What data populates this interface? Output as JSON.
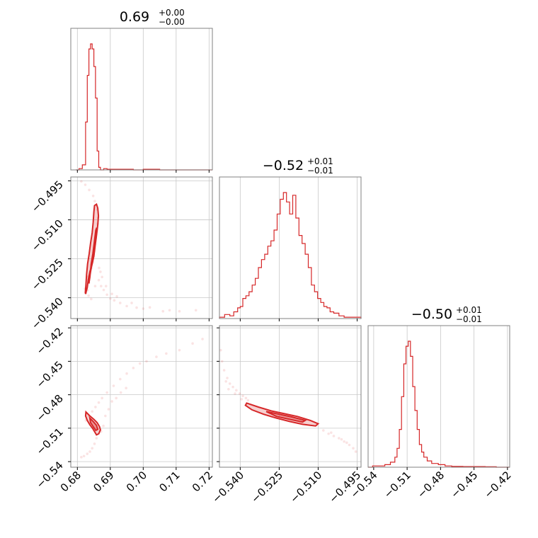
{
  "chart_data": {
    "type": "corner",
    "parameters": [
      {
        "range": [
          0.678,
          0.721
        ],
        "ticks": [
          0.68,
          0.69,
          0.7,
          0.71,
          0.72
        ],
        "tick_labels": [
          "0.68",
          "0.69",
          "0.70",
          "0.71",
          "0.72"
        ],
        "title": {
          "value": "0.69",
          "plus": "+0.00",
          "minus": "−0.00"
        }
      },
      {
        "range": [
          -0.548,
          -0.4935
        ],
        "ticks": [
          -0.54,
          -0.525,
          -0.51,
          -0.495
        ],
        "tick_labels": [
          "−0.540",
          "−0.525",
          "−0.510",
          "−0.495"
        ],
        "title": {
          "value": "−0.52",
          "plus": "+0.01",
          "minus": "−0.01"
        }
      },
      {
        "range": [
          -0.545,
          -0.418
        ],
        "ticks": [
          -0.54,
          -0.51,
          -0.48,
          -0.45,
          -0.42
        ],
        "tick_labels": [
          "−0.54",
          "−0.51",
          "−0.48",
          "−0.45",
          "−0.42"
        ],
        "title": {
          "value": "−0.50",
          "plus": "+0.01",
          "minus": "−0.01"
        }
      }
    ],
    "histograms": [
      {
        "param": 0,
        "bins": [
          [
            0.6795,
            0
          ],
          [
            0.6805,
            1
          ],
          [
            0.6815,
            4
          ],
          [
            0.6825,
            38
          ],
          [
            0.683,
            75
          ],
          [
            0.6835,
            96
          ],
          [
            0.684,
            100
          ],
          [
            0.6845,
            96
          ],
          [
            0.685,
            82
          ],
          [
            0.6855,
            57
          ],
          [
            0.686,
            15
          ],
          [
            0.6865,
            2
          ],
          [
            0.687,
            0
          ],
          [
            0.688,
            1
          ],
          [
            0.689,
            0.5
          ],
          [
            0.69,
            0.5
          ],
          [
            0.693,
            0.5
          ],
          [
            0.695,
            0.5
          ],
          [
            0.697,
            0
          ],
          [
            0.7,
            0.5
          ],
          [
            0.701,
            0.5
          ],
          [
            0.702,
            0.5
          ],
          [
            0.705,
            0
          ],
          [
            0.721,
            0
          ]
        ]
      },
      {
        "param": 1,
        "bins": [
          [
            -0.548,
            1
          ],
          [
            -0.546,
            3
          ],
          [
            -0.544,
            2
          ],
          [
            -0.5425,
            5
          ],
          [
            -0.541,
            8
          ],
          [
            -0.54,
            9
          ],
          [
            -0.539,
            15
          ],
          [
            -0.5378,
            17
          ],
          [
            -0.5366,
            20
          ],
          [
            -0.5354,
            25
          ],
          [
            -0.5342,
            30
          ],
          [
            -0.533,
            38
          ],
          [
            -0.5318,
            44
          ],
          [
            -0.5306,
            48
          ],
          [
            -0.5294,
            54
          ],
          [
            -0.5282,
            58
          ],
          [
            -0.527,
            66
          ],
          [
            -0.5258,
            78
          ],
          [
            -0.5246,
            89
          ],
          [
            -0.5234,
            94
          ],
          [
            -0.5222,
            87
          ],
          [
            -0.521,
            78
          ],
          [
            -0.5198,
            92
          ],
          [
            -0.5186,
            75
          ],
          [
            -0.5174,
            62
          ],
          [
            -0.5162,
            56
          ],
          [
            -0.515,
            48
          ],
          [
            -0.5138,
            38
          ],
          [
            -0.5126,
            25
          ],
          [
            -0.5114,
            20
          ],
          [
            -0.5102,
            15
          ],
          [
            -0.509,
            12
          ],
          [
            -0.5078,
            9
          ],
          [
            -0.5066,
            8
          ],
          [
            -0.5054,
            5
          ],
          [
            -0.504,
            4
          ],
          [
            -0.502,
            2
          ],
          [
            -0.5,
            1
          ],
          [
            -0.498,
            1
          ],
          [
            -0.4935,
            0
          ]
        ]
      },
      {
        "param": 2,
        "bins": [
          [
            -0.545,
            0
          ],
          [
            -0.541,
            1
          ],
          [
            -0.535,
            1
          ],
          [
            -0.53,
            2
          ],
          [
            -0.525,
            4
          ],
          [
            -0.521,
            8
          ],
          [
            -0.519,
            15
          ],
          [
            -0.517,
            30
          ],
          [
            -0.515,
            56
          ],
          [
            -0.513,
            82
          ],
          [
            -0.511,
            96
          ],
          [
            -0.509,
            100
          ],
          [
            -0.507,
            88
          ],
          [
            -0.505,
            64
          ],
          [
            -0.503,
            45
          ],
          [
            -0.501,
            30
          ],
          [
            -0.499,
            18
          ],
          [
            -0.497,
            12
          ],
          [
            -0.495,
            8
          ],
          [
            -0.492,
            5
          ],
          [
            -0.488,
            3
          ],
          [
            -0.482,
            2
          ],
          [
            -0.476,
            1
          ],
          [
            -0.47,
            0.6
          ],
          [
            -0.46,
            0.5
          ],
          [
            -0.45,
            0.5
          ],
          [
            -0.44,
            0.4
          ],
          [
            -0.43,
            0
          ],
          [
            -0.418,
            0
          ]
        ]
      }
    ],
    "scatters": [
      {
        "x_param": 0,
        "y_param": 1,
        "points": [
          [
            0.6826,
            -0.5382
          ],
          [
            0.6831,
            -0.5371
          ],
          [
            0.6828,
            -0.5355
          ],
          [
            0.6835,
            -0.5342
          ],
          [
            0.6833,
            -0.5318
          ],
          [
            0.6839,
            -0.53
          ],
          [
            0.6842,
            -0.5286
          ],
          [
            0.6846,
            -0.5262
          ],
          [
            0.6848,
            -0.524
          ],
          [
            0.6851,
            -0.522
          ],
          [
            0.6853,
            -0.5195
          ],
          [
            0.6856,
            -0.517
          ],
          [
            0.6859,
            -0.514
          ],
          [
            0.6862,
            -0.5115
          ],
          [
            0.6863,
            -0.5092
          ],
          [
            0.686,
            -0.506
          ],
          [
            0.6853,
            -0.5028
          ],
          [
            0.6848,
            -0.5008
          ],
          [
            0.6836,
            -0.4985
          ],
          [
            0.6824,
            -0.4965
          ],
          [
            0.6812,
            -0.4952
          ],
          [
            0.6865,
            -0.5332
          ],
          [
            0.6872,
            -0.5355
          ],
          [
            0.688,
            -0.537
          ],
          [
            0.689,
            -0.5388
          ],
          [
            0.69,
            -0.5403
          ],
          [
            0.6912,
            -0.541
          ],
          [
            0.693,
            -0.542
          ],
          [
            0.695,
            -0.5432
          ],
          [
            0.6965,
            -0.542
          ],
          [
            0.698,
            -0.5438
          ],
          [
            0.7,
            -0.5442
          ],
          [
            0.702,
            -0.5437
          ],
          [
            0.706,
            -0.5452
          ],
          [
            0.708,
            -0.5448
          ],
          [
            0.711,
            -0.5452
          ],
          [
            0.716,
            -0.5448
          ],
          [
            0.687,
            -0.53
          ],
          [
            0.6875,
            -0.532
          ],
          [
            0.6887,
            -0.5355
          ],
          [
            0.6905,
            -0.5385
          ],
          [
            0.692,
            -0.5395
          ],
          [
            0.6823,
            -0.5365
          ],
          [
            0.6834,
            -0.5392
          ],
          [
            0.6842,
            -0.5405
          ],
          [
            0.6854,
            -0.5355
          ],
          [
            0.6866,
            -0.5285
          ]
        ]
      },
      {
        "x_param": 0,
        "y_param": 2,
        "points": [
          [
            0.6826,
            -0.503
          ],
          [
            0.6835,
            -0.499
          ],
          [
            0.6845,
            -0.495
          ],
          [
            0.6855,
            -0.491
          ],
          [
            0.6865,
            -0.487
          ],
          [
            0.6875,
            -0.483
          ],
          [
            0.689,
            -0.478
          ],
          [
            0.691,
            -0.472
          ],
          [
            0.693,
            -0.466
          ],
          [
            0.695,
            -0.461
          ],
          [
            0.697,
            -0.456
          ],
          [
            0.699,
            -0.452
          ],
          [
            0.701,
            -0.45
          ],
          [
            0.704,
            -0.446
          ],
          [
            0.707,
            -0.443
          ],
          [
            0.711,
            -0.44
          ],
          [
            0.715,
            -0.434
          ],
          [
            0.718,
            -0.43
          ],
          [
            0.6858,
            -0.519
          ],
          [
            0.6852,
            -0.524
          ],
          [
            0.6845,
            -0.528
          ],
          [
            0.6838,
            -0.531
          ],
          [
            0.683,
            -0.533
          ],
          [
            0.682,
            -0.535
          ],
          [
            0.6812,
            -0.536
          ],
          [
            0.6872,
            -0.513
          ],
          [
            0.6879,
            -0.508
          ],
          [
            0.6885,
            -0.499
          ],
          [
            0.6895,
            -0.493
          ],
          [
            0.6905,
            -0.486
          ],
          [
            0.6918,
            -0.483
          ],
          [
            0.6932,
            -0.478
          ],
          [
            0.6948,
            -0.474
          ]
        ]
      },
      {
        "x_param": 1,
        "y_param": 2,
        "points": [
          [
            -0.5475,
            -0.44
          ],
          [
            -0.547,
            -0.45
          ],
          [
            -0.5462,
            -0.458
          ],
          [
            -0.545,
            -0.465
          ],
          [
            -0.544,
            -0.47
          ],
          [
            -0.5428,
            -0.473
          ],
          [
            -0.5415,
            -0.476
          ],
          [
            -0.5402,
            -0.479
          ],
          [
            -0.539,
            -0.481
          ],
          [
            -0.5378,
            -0.483
          ],
          [
            -0.537,
            -0.485
          ],
          [
            -0.5455,
            -0.468
          ],
          [
            -0.5445,
            -0.475
          ],
          [
            -0.542,
            -0.479
          ],
          [
            -0.5395,
            -0.484
          ],
          [
            -0.508,
            -0.512
          ],
          [
            -0.506,
            -0.515
          ],
          [
            -0.504,
            -0.517
          ],
          [
            -0.502,
            -0.519
          ],
          [
            -0.5,
            -0.522
          ],
          [
            -0.498,
            -0.525
          ],
          [
            -0.4965,
            -0.528
          ],
          [
            -0.4955,
            -0.531
          ],
          [
            -0.505,
            -0.514
          ],
          [
            -0.501,
            -0.52
          ],
          [
            -0.499,
            -0.523
          ]
        ]
      }
    ],
    "contours": [
      {
        "x_param": 0,
        "y_param": 1,
        "outer": [
          [
            0.6825,
            -0.5385
          ],
          [
            0.683,
            -0.536
          ],
          [
            0.6833,
            -0.533
          ],
          [
            0.6838,
            -0.53
          ],
          [
            0.6845,
            -0.527
          ],
          [
            0.685,
            -0.524
          ],
          [
            0.6854,
            -0.52
          ],
          [
            0.6858,
            -0.516
          ],
          [
            0.6862,
            -0.512
          ],
          [
            0.6864,
            -0.5085
          ],
          [
            0.6862,
            -0.5055
          ],
          [
            0.6858,
            -0.504
          ],
          [
            0.6852,
            -0.5045
          ],
          [
            0.685,
            -0.507
          ],
          [
            0.6848,
            -0.511
          ],
          [
            0.6845,
            -0.515
          ],
          [
            0.684,
            -0.519
          ],
          [
            0.6836,
            -0.523
          ],
          [
            0.6831,
            -0.527
          ],
          [
            0.6828,
            -0.531
          ],
          [
            0.6826,
            -0.535
          ],
          [
            0.6824,
            -0.538
          ]
        ],
        "inner": [
          [
            0.6835,
            -0.5345
          ],
          [
            0.684,
            -0.53
          ],
          [
            0.6846,
            -0.526
          ],
          [
            0.6852,
            -0.521
          ],
          [
            0.6856,
            -0.516
          ],
          [
            0.6859,
            -0.513
          ],
          [
            0.6856,
            -0.514
          ],
          [
            0.6852,
            -0.518
          ],
          [
            0.6847,
            -0.523
          ],
          [
            0.6842,
            -0.527
          ],
          [
            0.6838,
            -0.532
          ]
        ]
      },
      {
        "x_param": 0,
        "y_param": 2,
        "outer": [
          [
            0.6826,
            -0.4955
          ],
          [
            0.6838,
            -0.499
          ],
          [
            0.685,
            -0.502
          ],
          [
            0.686,
            -0.505
          ],
          [
            0.6867,
            -0.5085
          ],
          [
            0.687,
            -0.5115
          ],
          [
            0.6865,
            -0.515
          ],
          [
            0.6858,
            -0.516
          ],
          [
            0.6852,
            -0.513
          ],
          [
            0.6846,
            -0.51
          ],
          [
            0.6838,
            -0.507
          ],
          [
            0.683,
            -0.503
          ],
          [
            0.6825,
            -0.499
          ]
        ],
        "inner": [
          [
            0.6838,
            -0.501
          ],
          [
            0.6848,
            -0.504
          ],
          [
            0.6858,
            -0.5075
          ],
          [
            0.6862,
            -0.511
          ],
          [
            0.6856,
            -0.512
          ],
          [
            0.6848,
            -0.5085
          ],
          [
            0.684,
            -0.505
          ]
        ]
      },
      {
        "x_param": 1,
        "y_param": 2,
        "outer": [
          [
            -0.5375,
            -0.4875
          ],
          [
            -0.533,
            -0.491
          ],
          [
            -0.528,
            -0.4945
          ],
          [
            -0.523,
            -0.497
          ],
          [
            -0.518,
            -0.4995
          ],
          [
            -0.513,
            -0.503
          ],
          [
            -0.51,
            -0.506
          ],
          [
            -0.511,
            -0.508
          ],
          [
            -0.516,
            -0.5065
          ],
          [
            -0.521,
            -0.504
          ],
          [
            -0.526,
            -0.501
          ],
          [
            -0.531,
            -0.4975
          ],
          [
            -0.5355,
            -0.4935
          ],
          [
            -0.538,
            -0.4895
          ]
        ],
        "inner": [
          [
            -0.53,
            -0.495
          ],
          [
            -0.525,
            -0.4975
          ],
          [
            -0.52,
            -0.5
          ],
          [
            -0.515,
            -0.503
          ],
          [
            -0.516,
            -0.5045
          ],
          [
            -0.521,
            -0.502
          ],
          [
            -0.526,
            -0.4995
          ]
        ]
      }
    ],
    "grid": true,
    "colors": {
      "series": "#d62728",
      "frame": "#808080",
      "grid": "#c8c8c8"
    }
  }
}
